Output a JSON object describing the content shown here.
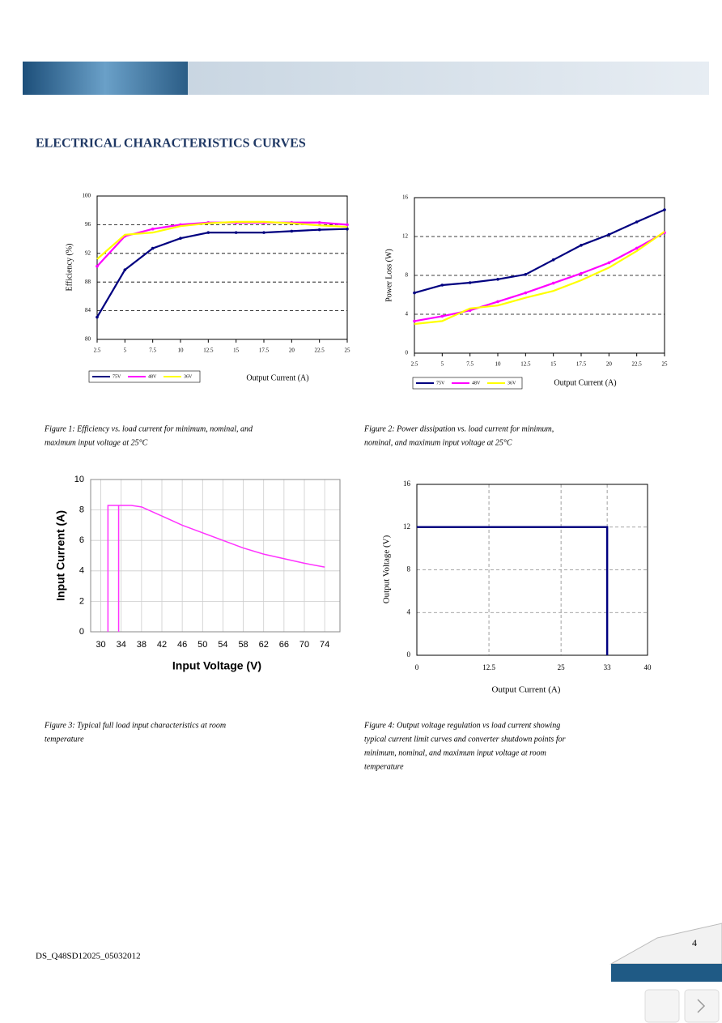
{
  "header": {
    "title": "ELECTRICAL CHARACTERISTICS CURVES"
  },
  "chart_data": [
    {
      "type": "line",
      "x_label": "Output Current (A)",
      "y_label": "Efficiency (%)",
      "x": [
        2.5,
        5,
        7.5,
        10,
        12.5,
        15,
        17.5,
        20,
        22.5,
        25
      ],
      "xlim": [
        2.5,
        25
      ],
      "xticks": [
        2.5,
        5,
        7.5,
        10,
        12.5,
        15,
        17.5,
        20,
        22.5,
        25
      ],
      "ylim": [
        80,
        100
      ],
      "yticks": [
        80,
        84,
        88,
        92,
        96,
        100
      ],
      "grid": "y",
      "series": [
        {
          "name": "75V",
          "color": "#000080",
          "values": [
            83.1,
            89.7,
            92.7,
            94.1,
            94.9,
            94.9,
            94.9,
            95.1,
            95.3,
            95.4
          ]
        },
        {
          "name": "48V",
          "color": "#ff00ff",
          "values": [
            90.2,
            94.4,
            95.4,
            96.0,
            96.3,
            96.3,
            96.3,
            96.3,
            96.3,
            96.0
          ]
        },
        {
          "name": "36V",
          "color": "#ffff00",
          "values": [
            91.2,
            94.6,
            94.9,
            95.8,
            96.2,
            96.4,
            96.4,
            96.2,
            95.9,
            95.7
          ]
        }
      ]
    },
    {
      "type": "line",
      "x_label": "Output Current (A)",
      "y_label": "Power Loss (W)",
      "x": [
        2.5,
        5,
        7.5,
        10,
        12.5,
        15,
        17.5,
        20,
        22.5,
        25
      ],
      "xlim": [
        2.5,
        25
      ],
      "xticks": [
        2.5,
        5,
        7.5,
        10,
        12.5,
        15,
        17.5,
        20,
        22.5,
        25
      ],
      "ylim": [
        0,
        16
      ],
      "yticks": [
        0,
        4,
        8,
        12,
        16
      ],
      "grid": "y",
      "series": [
        {
          "name": "75V",
          "color": "#000080",
          "values": [
            6.2,
            7.0,
            7.25,
            7.6,
            8.1,
            9.6,
            11.1,
            12.2,
            13.5,
            14.75
          ]
        },
        {
          "name": "48V",
          "color": "#ff00ff",
          "values": [
            3.3,
            3.8,
            4.4,
            5.3,
            6.2,
            7.2,
            8.2,
            9.3,
            10.8,
            12.4
          ]
        },
        {
          "name": "36V",
          "color": "#ffff00",
          "values": [
            3.0,
            3.3,
            4.6,
            4.9,
            5.7,
            6.4,
            7.5,
            8.8,
            10.5,
            12.5
          ]
        }
      ]
    },
    {
      "type": "line",
      "x_label": "Input Voltage (V)",
      "y_label": "Input Current (A)",
      "color": "#ff33ff",
      "x": [
        31.4,
        31.4,
        33.5,
        33.5,
        null,
        33.5,
        36,
        38,
        42,
        46,
        50,
        54,
        58,
        62,
        66,
        70,
        74
      ],
      "values": [
        0,
        8.3,
        8.3,
        0,
        null,
        8.3,
        8.3,
        8.2,
        7.6,
        7.0,
        6.5,
        6.0,
        5.5,
        5.1,
        4.8,
        4.5,
        4.25
      ],
      "xlim": [
        28,
        77
      ],
      "xticks": [
        30,
        34,
        38,
        42,
        46,
        50,
        54,
        58,
        62,
        66,
        70,
        74
      ],
      "ylim": [
        0,
        10
      ],
      "yticks": [
        0,
        2,
        4,
        6,
        8,
        10
      ],
      "grid": "both"
    },
    {
      "type": "line",
      "x_label": "Output Current (A)",
      "y_label": "Output Voltage (V)",
      "color": "#000080",
      "x": [
        0,
        33,
        33
      ],
      "values": [
        12,
        12,
        0
      ],
      "xlim": [
        0,
        40
      ],
      "xticks": [
        0,
        12.5,
        25,
        33,
        40
      ],
      "ylim": [
        0,
        16
      ],
      "yticks": [
        0,
        4,
        8,
        12,
        16
      ],
      "grid": "both"
    }
  ],
  "captions": [
    [
      "Figure 1: Efficiency vs. load current for minimum, nominal, and",
      "maximum input voltage at 25°C"
    ],
    [
      "Figure 2: Power dissipation vs. load current for minimum,",
      "nominal, and maximum input voltage at 25°C"
    ],
    [
      "Figure 3: Typical full load input characteristics at room",
      "temperature"
    ],
    [
      "Figure 4: Output voltage regulation vs load current showing",
      "typical current limit curves and converter shutdown points for",
      "minimum, nominal, and maximum input voltage at room",
      "temperature"
    ]
  ],
  "footer": {
    "doc_id": "DS_Q48SD12025_05032012",
    "page": "4"
  }
}
